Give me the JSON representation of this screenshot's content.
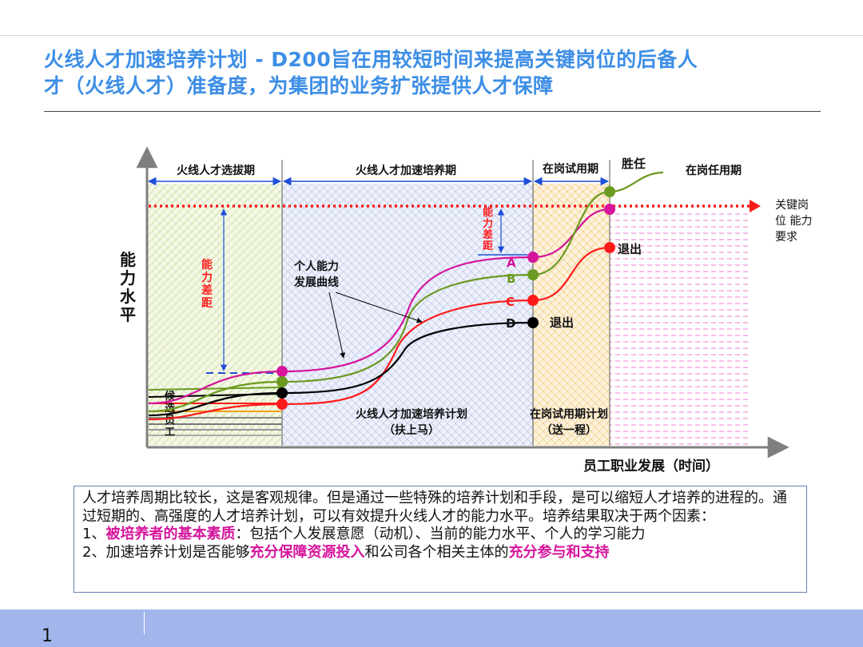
{
  "title": {
    "line1": "火线人才加速培养计划 - D200旨在用较短时间来提高关键岗位的后备人",
    "line2": "才（火线人才）准备度，为集团的业务扩张提供人才保障"
  },
  "diagram": {
    "y_axis_label": "能力水平",
    "x_axis_label": "员工职业发展（时间）",
    "phases": [
      "火线人才选拔期",
      "火线人才加速培养期",
      "在岗试用期",
      "在岗任用期"
    ],
    "competent_label": "胜任",
    "requirement_label": "关键岗位 能力要求",
    "gap_label": "能力差距",
    "curve_label": "个人能力发展曲线",
    "candidates_label": "候选员工",
    "exit_label": "退出",
    "curve_names": [
      "A",
      "B",
      "C",
      "D"
    ],
    "plan1": [
      "火线人才加速培养计划",
      "（扶上马）"
    ],
    "plan2": [
      "在岗试用期计划",
      "（送一程）"
    ],
    "colors": {
      "A": "#d6149c",
      "B": "#6a9a1f",
      "C": "#ff1a1a",
      "D": "#000000",
      "requirement": "#ff1a1a",
      "arrow": "#1f4fd8"
    }
  },
  "note": {
    "p1": "人才培养周期比较长，这是客观规律。但是通过一些特殊的培养计划和手段，是可以缩短人才培养的进程的。通过短期的、高强度的人才培养计划，可以有效提升火线人才的能力水平。培养结果取决于两个因素：",
    "l1_prefix": "1、",
    "l1_highlight": "被培养者的基本素质",
    "l1_rest": "：包括个人发展意愿（动机）、当前的能力水平、个人的学习能力",
    "l2_prefix": "2、加速培养计划是否能够",
    "l2_highlight1": "充分保障资源投入",
    "l2_mid": "和公司各个相关主体的",
    "l2_highlight2": "充分参与和支持"
  },
  "page_number": "1"
}
